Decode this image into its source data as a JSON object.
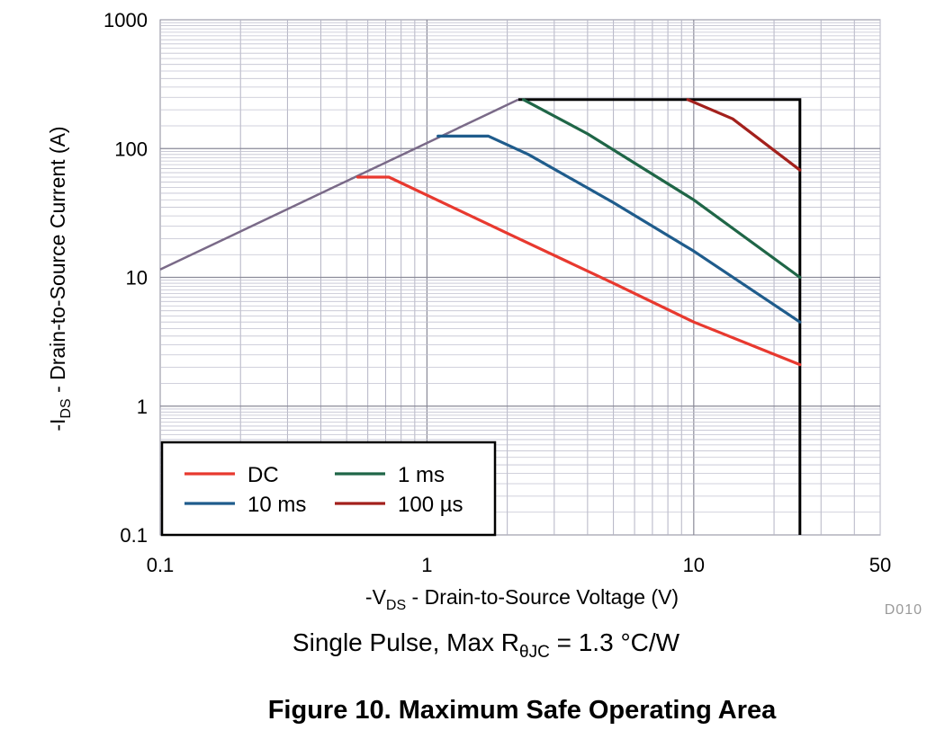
{
  "chart_data": {
    "type": "line",
    "x_scale": "log",
    "y_scale": "log",
    "xlim": [
      0.1,
      50
    ],
    "ylim": [
      0.1,
      1000
    ],
    "grid": true,
    "legend_position": "bottom-left",
    "x_ticks": [
      "0.1",
      "1",
      "10",
      "50"
    ],
    "y_ticks": [
      "1000",
      "100",
      "10",
      "1",
      "0.1"
    ],
    "xlabel": {
      "prefix": "-V",
      "sub": "DS",
      "suffix": " - Drain-to-Source Voltage (V)"
    },
    "ylabel": {
      "prefix": "-I",
      "sub": "DS",
      "suffix": " - Drain-to-Source Current (A)"
    },
    "code": "D010",
    "note": {
      "prefix": "Single Pulse, Max R",
      "sub": "θJC",
      "suffix": " = 1.3 °C/W"
    },
    "title": "Figure 10. Maximum Safe Operating Area",
    "boundary": {
      "rdson_limit": {
        "color": "#7a6a88",
        "points": [
          [
            0.1,
            11.5
          ],
          [
            2.2,
            240
          ]
        ]
      },
      "current_limit": 240,
      "voltage_limit": 25,
      "color": "#000000"
    },
    "series": [
      {
        "name": "DC",
        "color": "#e8392f",
        "points": [
          [
            0.55,
            60
          ],
          [
            0.72,
            60
          ],
          [
            2,
            22
          ],
          [
            5,
            9
          ],
          [
            10,
            4.5
          ],
          [
            25,
            2.1
          ]
        ]
      },
      {
        "name": "10 ms",
        "color": "#1f5c8c",
        "points": [
          [
            1.1,
            125
          ],
          [
            1.7,
            125
          ],
          [
            2.4,
            90
          ],
          [
            5,
            38
          ],
          [
            10,
            16
          ],
          [
            25,
            4.5
          ]
        ]
      },
      {
        "name": "1 ms",
        "color": "#1f6647",
        "points": [
          [
            2.3,
            240
          ],
          [
            4,
            130
          ],
          [
            10,
            40
          ],
          [
            25,
            10
          ]
        ]
      },
      {
        "name": "100 µs",
        "color": "#a3201c",
        "points": [
          [
            9.5,
            240
          ],
          [
            14,
            170
          ],
          [
            25,
            68
          ]
        ]
      }
    ]
  }
}
